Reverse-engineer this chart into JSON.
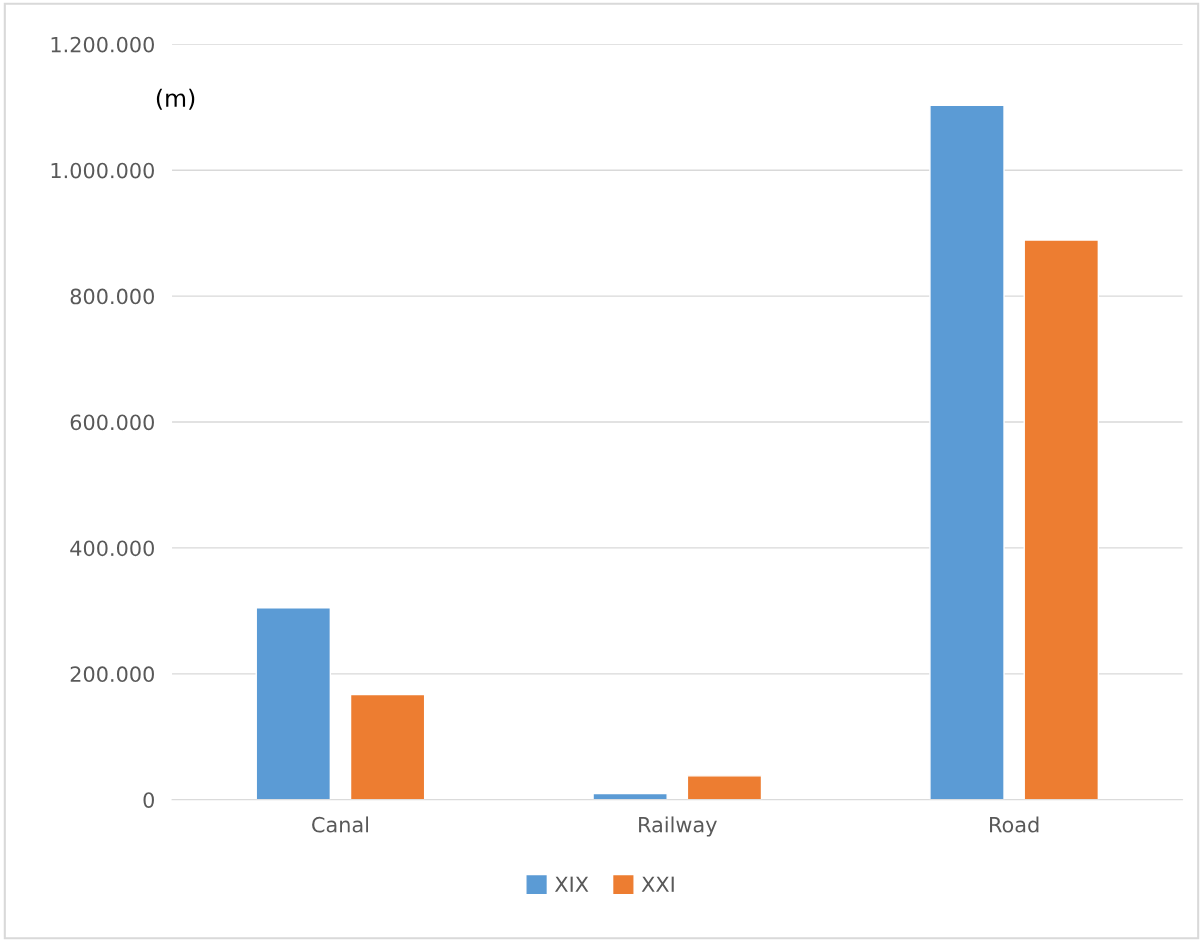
{
  "chart_data": {
    "type": "bar",
    "categories": [
      "Canal",
      "Railway",
      "Road"
    ],
    "series": [
      {
        "name": "XIX",
        "color": "#5b9bd5",
        "values": [
          305000,
          10000,
          1103000
        ]
      },
      {
        "name": "XXI",
        "color": "#ed7d31",
        "values": [
          167000,
          38000,
          889000
        ]
      }
    ],
    "ylim": [
      0,
      1200000
    ],
    "yticks": [
      0,
      {
        "value": 200000,
        "label": "200.000"
      },
      {
        "value": 400000,
        "label": "400.000"
      },
      {
        "value": 600000,
        "label": "600.000"
      },
      {
        "value": 800000,
        "label": "800.000"
      },
      {
        "value": 1000000,
        "label": "1.000.000"
      },
      {
        "value": 1200000,
        "label": "1.200.000"
      }
    ],
    "annotations": [
      "(m)"
    ],
    "grid": "y",
    "legend": "bottom"
  }
}
